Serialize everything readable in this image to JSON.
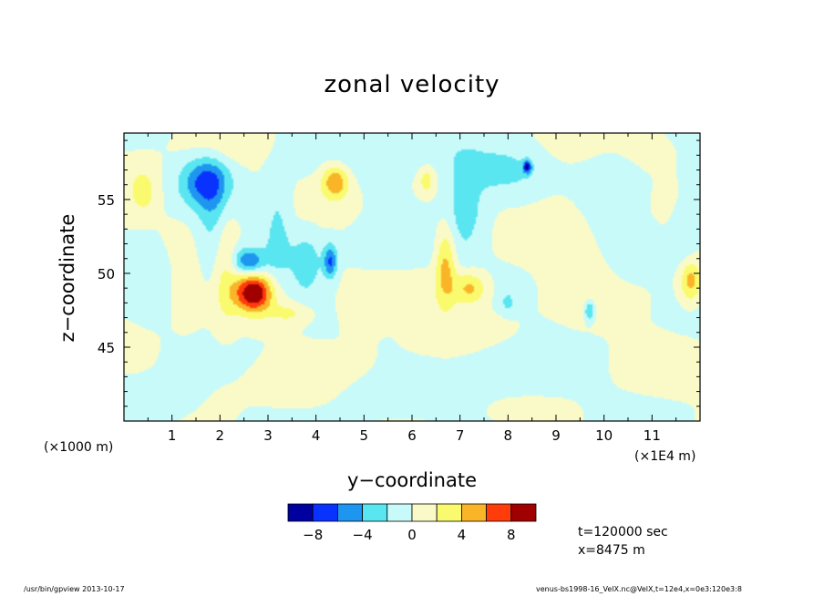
{
  "chart_data": {
    "type": "heatmap",
    "title": "zonal velocity",
    "xlabel": "y−coordinate",
    "ylabel": "z−coordinate",
    "x_unit_left": "(×1000 m)",
    "x_unit_right": "(×1E4 m)",
    "xlim": [
      0,
      12
    ],
    "ylim": [
      40,
      59.5
    ],
    "x_ticks": [
      "1",
      "2",
      "3",
      "4",
      "5",
      "6",
      "7",
      "8",
      "9",
      "10",
      "11"
    ],
    "y_ticks": [
      "45",
      "50",
      "55"
    ],
    "colorbar": {
      "levels": [
        "−8",
        "−4",
        "0",
        "4",
        "8"
      ],
      "colors": [
        "#0000a0",
        "#0a32ff",
        "#1e96f0",
        "#5ae6f0",
        "#c8fafa",
        "#fafac8",
        "#fafa6e",
        "#fab428",
        "#ff3c0a",
        "#a00000"
      ]
    },
    "blobs": [
      {
        "x": 0.4,
        "y": 55.5,
        "sx": 0.22,
        "sy": 1.2,
        "v": 3
      },
      {
        "x": 1.7,
        "y": 56.2,
        "sx": 0.35,
        "sy": 1.2,
        "v": -6
      },
      {
        "x": 1.9,
        "y": 53.5,
        "sx": 0.25,
        "sy": 2.5,
        "v": -3
      },
      {
        "x": 2.1,
        "y": 51.0,
        "sx": 0.18,
        "sy": 3.0,
        "v": 3
      },
      {
        "x": 2.7,
        "y": 48.7,
        "sx": 0.28,
        "sy": 0.9,
        "v": 10
      },
      {
        "x": 2.6,
        "y": 50.8,
        "sx": 0.22,
        "sy": 0.6,
        "v": -6
      },
      {
        "x": 3.2,
        "y": 53.0,
        "sx": 0.2,
        "sy": 3.0,
        "v": -2.5
      },
      {
        "x": 3.8,
        "y": 50.5,
        "sx": 0.22,
        "sy": 1.5,
        "v": -3
      },
      {
        "x": 4.3,
        "y": 50.8,
        "sx": 0.1,
        "sy": 0.8,
        "v": -6
      },
      {
        "x": 4.4,
        "y": 56.2,
        "sx": 0.2,
        "sy": 0.8,
        "v": 6
      },
      {
        "x": 5.6,
        "y": 51.5,
        "sx": 0.6,
        "sy": 1.0,
        "v": -2
      },
      {
        "x": 5.8,
        "y": 58.3,
        "sx": 0.9,
        "sy": 1.2,
        "v": -2
      },
      {
        "x": 6.7,
        "y": 50.5,
        "sx": 0.15,
        "sy": 2.0,
        "v": 5
      },
      {
        "x": 7.1,
        "y": 54.5,
        "sx": 0.3,
        "sy": 2.5,
        "v": -3
      },
      {
        "x": 7.2,
        "y": 49.0,
        "sx": 0.25,
        "sy": 0.8,
        "v": 5
      },
      {
        "x": 6.3,
        "y": 56.3,
        "sx": 0.12,
        "sy": 0.7,
        "v": 3
      },
      {
        "x": 7.8,
        "y": 57.0,
        "sx": 0.55,
        "sy": 1.0,
        "v": -3
      },
      {
        "x": 8.4,
        "y": 57.2,
        "sx": 0.06,
        "sy": 0.3,
        "v": -8
      },
      {
        "x": 8.0,
        "y": 48.0,
        "sx": 0.1,
        "sy": 0.5,
        "v": -2.5
      },
      {
        "x": 9.7,
        "y": 47.5,
        "sx": 0.08,
        "sy": 0.5,
        "v": -5
      },
      {
        "x": 9.6,
        "y": 50.0,
        "sx": 0.35,
        "sy": 2.0,
        "v": 1.5
      },
      {
        "x": 10.3,
        "y": 55.5,
        "sx": 0.45,
        "sy": 2.5,
        "v": -1.8
      },
      {
        "x": 11.8,
        "y": 49.5,
        "sx": 0.15,
        "sy": 1.0,
        "v": 5
      },
      {
        "x": 0.5,
        "y": 50.5,
        "sx": 0.3,
        "sy": 2.0,
        "v": -1.5
      },
      {
        "x": 1.3,
        "y": 49.0,
        "sx": 0.2,
        "sy": 1.5,
        "v": 2
      },
      {
        "x": 4.9,
        "y": 47.0,
        "sx": 0.4,
        "sy": 1.2,
        "v": 1
      },
      {
        "x": 3.5,
        "y": 42.5,
        "sx": 0.6,
        "sy": 1.2,
        "v": 1.2
      },
      {
        "x": 8.5,
        "y": 43.5,
        "sx": 0.9,
        "sy": 1.3,
        "v": -1.5
      },
      {
        "x": 1.0,
        "y": 41.5,
        "sx": 0.5,
        "sy": 1.0,
        "v": -1.2
      },
      {
        "x": 11.0,
        "y": 44.0,
        "sx": 0.7,
        "sy": 1.2,
        "v": 1
      },
      {
        "x": 10.8,
        "y": 58.0,
        "sx": 0.6,
        "sy": 1.0,
        "v": 1.2
      },
      {
        "x": 2.0,
        "y": 58.5,
        "sx": 0.6,
        "sy": 0.8,
        "v": 1
      },
      {
        "x": 5.3,
        "y": 41.5,
        "sx": 0.7,
        "sy": 1.0,
        "v": -1
      },
      {
        "x": 6.0,
        "y": 48.5,
        "sx": 0.5,
        "sy": 1.2,
        "v": 1.2
      },
      {
        "x": 3.4,
        "y": 47.3,
        "sx": 0.3,
        "sy": 0.5,
        "v": 2.5
      },
      {
        "x": 7.5,
        "y": 46.2,
        "sx": 0.4,
        "sy": 0.6,
        "v": 1
      },
      {
        "x": 9.0,
        "y": 53.5,
        "sx": 0.4,
        "sy": 2.5,
        "v": 0.8
      },
      {
        "x": 11.7,
        "y": 52.5,
        "sx": 0.2,
        "sy": 2.0,
        "v": -1.5
      }
    ]
  },
  "info": {
    "time": "t=120000 sec",
    "position": "x=8475 m"
  },
  "footer": {
    "left": "/usr/bin/gpview   2013-10-17",
    "right": "venus-bs1998-16_VelX.nc@VelX,t=12e4,x=0e3:120e3:8"
  }
}
